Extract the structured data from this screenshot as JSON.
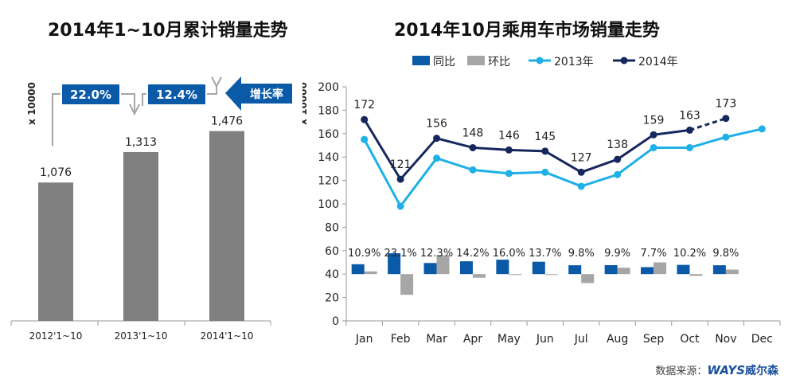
{
  "left_title": "2014年1~10月累计销量走势",
  "right_title": "2014年10月乘用车市场销量走势",
  "source": {
    "label": "数据来源：",
    "brand": "WAYS",
    "brand_cn": "威尔森"
  },
  "colors": {
    "yoy": "#0a5aa8",
    "mom": "#a6a6a6",
    "s2013": "#1eb0e6",
    "s2014": "#16275e",
    "bar": "#808080",
    "callout": "#0a5aa8",
    "connector": "#a6a6a6"
  },
  "chart_data": [
    {
      "type": "bar",
      "title": "2014年1~10月累计销量走势",
      "ylabel": "x 10000",
      "categories": [
        "2012'1~10",
        "2013'1~10",
        "2014'1~10"
      ],
      "values": [
        1076,
        1313,
        1476
      ],
      "value_labels": [
        "1,076",
        "1,313",
        "1,476"
      ],
      "growth_label": "增长率",
      "growth": [
        {
          "from": "2012'1~10",
          "to": "2013'1~10",
          "label": "22.0%"
        },
        {
          "from": "2013'1~10",
          "to": "2014'1~10",
          "label": "12.4%"
        }
      ]
    },
    {
      "type": "line",
      "title": "2014年10月乘用车市场销量走势",
      "ylabel": "x 10000",
      "ylim": [
        0,
        200
      ],
      "yticks": [
        0,
        20,
        40,
        60,
        80,
        100,
        120,
        140,
        160,
        180,
        200
      ],
      "categories": [
        "Jan",
        "Feb",
        "Mar",
        "Apr",
        "May",
        "Jun",
        "Jul",
        "Aug",
        "Sep",
        "Oct",
        "Nov",
        "Dec"
      ],
      "legend": [
        "同比",
        "环比",
        "2013年",
        "2014年"
      ],
      "series": [
        {
          "name": "2013年",
          "values": [
            155,
            98,
            139,
            129,
            126,
            127,
            115,
            125,
            148,
            148,
            157,
            164
          ]
        },
        {
          "name": "2014年",
          "values": [
            172,
            121,
            156,
            148,
            146,
            145,
            127,
            138,
            159,
            163,
            173,
            null
          ],
          "labels": [
            "172",
            "121",
            "156",
            "148",
            "146",
            "145",
            "127",
            "138",
            "159",
            "163",
            "173",
            ""
          ],
          "dashed_from_index": 9
        },
        {
          "name": "同比",
          "values": [
            10.9,
            23.1,
            12.3,
            14.2,
            16.0,
            13.7,
            9.8,
            9.9,
            7.7,
            10.2,
            9.8,
            null
          ],
          "labels": [
            "10.9%",
            "23.1%",
            "12.3%",
            "14.2%",
            "16.0%",
            "13.7%",
            "9.8%",
            "9.9%",
            "7.7%",
            "10.2%",
            "9.8%",
            ""
          ]
        },
        {
          "name": "环比",
          "values": [
            3,
            -23,
            21,
            -4,
            -1,
            -1,
            -10,
            7,
            13,
            -2,
            5,
            null
          ]
        }
      ],
      "bar_baseline": 40,
      "bar_scale": 0.77
    }
  ]
}
